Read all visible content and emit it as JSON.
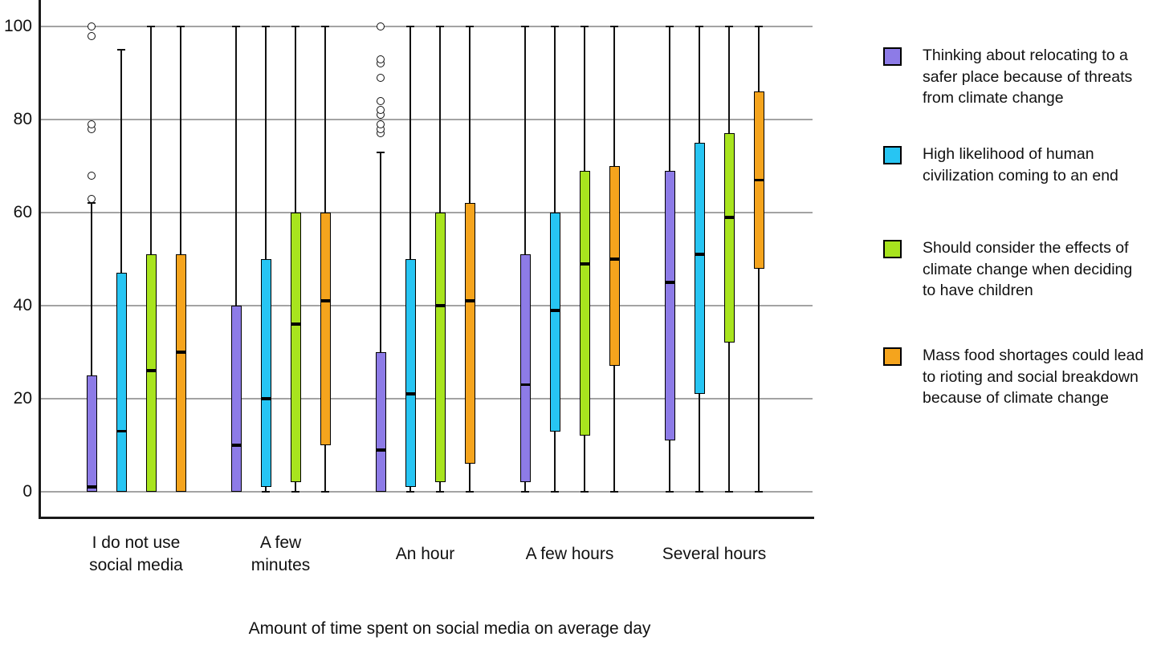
{
  "chart_data": {
    "type": "boxplot",
    "title": "",
    "xlabel": "Amount of time spent on social media on average day",
    "ylabel": "",
    "ylim": [
      0,
      100
    ],
    "yticks": [
      0,
      20,
      40,
      60,
      80,
      100
    ],
    "grid": true,
    "legend_position": "right",
    "categories": [
      "I do not use\nsocial media",
      "A few\nminutes",
      "An hour",
      "A few hours",
      "Several hours"
    ],
    "series": [
      {
        "name": "Thinking about relocating to a safer place because of threats from climate change",
        "color": "#8D7BE7",
        "boxes": [
          {
            "min": 0,
            "q1": 0,
            "median": 1,
            "q3": 25,
            "max": 62,
            "outliers": [
              63,
              68,
              78,
              79,
              98,
              100
            ]
          },
          {
            "min": 0,
            "q1": 0,
            "median": 10,
            "q3": 40,
            "max": 100,
            "outliers": []
          },
          {
            "min": 0,
            "q1": 0,
            "median": 9,
            "q3": 30,
            "max": 73,
            "outliers": [
              77,
              78,
              79,
              81,
              82,
              84,
              89,
              92,
              93,
              100
            ]
          },
          {
            "min": 0,
            "q1": 2,
            "median": 23,
            "q3": 51,
            "max": 100,
            "outliers": []
          },
          {
            "min": 0,
            "q1": 11,
            "median": 45,
            "q3": 69,
            "max": 100,
            "outliers": []
          }
        ]
      },
      {
        "name": "High likelihood of human civilization coming to an end",
        "color": "#27C5F3",
        "boxes": [
          {
            "min": 0,
            "q1": 0,
            "median": 13,
            "q3": 47,
            "max": 95,
            "outliers": []
          },
          {
            "min": 0,
            "q1": 1,
            "median": 20,
            "q3": 50,
            "max": 100,
            "outliers": []
          },
          {
            "min": 0,
            "q1": 1,
            "median": 21,
            "q3": 50,
            "max": 100,
            "outliers": []
          },
          {
            "min": 0,
            "q1": 13,
            "median": 39,
            "q3": 60,
            "max": 100,
            "outliers": []
          },
          {
            "min": 0,
            "q1": 21,
            "median": 51,
            "q3": 75,
            "max": 100,
            "outliers": []
          }
        ]
      },
      {
        "name": "Should consider the effects of climate change when deciding to have children",
        "color": "#A8E41E",
        "boxes": [
          {
            "min": 0,
            "q1": 0,
            "median": 26,
            "q3": 51,
            "max": 100,
            "outliers": []
          },
          {
            "min": 0,
            "q1": 2,
            "median": 36,
            "q3": 60,
            "max": 100,
            "outliers": []
          },
          {
            "min": 0,
            "q1": 2,
            "median": 40,
            "q3": 60,
            "max": 100,
            "outliers": []
          },
          {
            "min": 0,
            "q1": 12,
            "median": 49,
            "q3": 69,
            "max": 100,
            "outliers": []
          },
          {
            "min": 0,
            "q1": 32,
            "median": 59,
            "q3": 77,
            "max": 100,
            "outliers": []
          }
        ]
      },
      {
        "name": "Mass food shortages could lead to rioting and social breakdown because of climate change",
        "color": "#F5A41D",
        "boxes": [
          {
            "min": 0,
            "q1": 0,
            "median": 30,
            "q3": 51,
            "max": 100,
            "outliers": []
          },
          {
            "min": 0,
            "q1": 10,
            "median": 41,
            "q3": 60,
            "max": 100,
            "outliers": []
          },
          {
            "min": 0,
            "q1": 6,
            "median": 41,
            "q3": 62,
            "max": 100,
            "outliers": []
          },
          {
            "min": 0,
            "q1": 27,
            "median": 50,
            "q3": 70,
            "max": 100,
            "outliers": []
          },
          {
            "min": 0,
            "q1": 48,
            "median": 67,
            "q3": 86,
            "max": 100,
            "outliers": []
          }
        ]
      }
    ]
  }
}
